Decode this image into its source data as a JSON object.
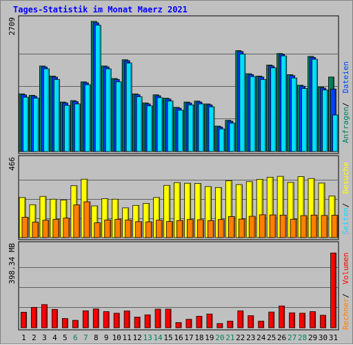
{
  "chart_data": {
    "type": "bar",
    "title": "Tages-Statistik im Monat Maerz 2021",
    "categories": [
      "1",
      "2",
      "3",
      "4",
      "5",
      "6",
      "7",
      "8",
      "9",
      "10",
      "11",
      "12",
      "13",
      "14",
      "15",
      "16",
      "17",
      "18",
      "19",
      "20",
      "21",
      "22",
      "23",
      "24",
      "25",
      "26",
      "27",
      "28",
      "29",
      "30",
      "31"
    ],
    "weekend_days": [
      "6",
      "7",
      "13",
      "14",
      "20",
      "21",
      "27",
      "28"
    ],
    "colors": {
      "background": "#c0c0c0",
      "title": "#0000ff",
      "anfragen": "#00805c",
      "dateien": "#0040ff",
      "seiten": "#00e0ff",
      "besuche": "#ffff00",
      "rechner": "#ff8000",
      "volumen": "#ff0000",
      "weekend": "#00805c",
      "weekday": "#000000",
      "gridline": "#000000"
    },
    "panels": [
      {
        "id": "requests",
        "ymax_label": "2709",
        "ymax": 2709,
        "grid": true,
        "series": [
          {
            "name": "Anfragen",
            "color": "#00805c",
            "values": [
              1200,
              1170,
              1780,
              1570,
              1030,
              1060,
              1450,
              2709,
              1780,
              1520,
              1910,
              1200,
              1010,
              1180,
              1110,
              920,
              1030,
              1050,
              990,
              530,
              650,
              2100,
              1620,
              1570,
              1800,
              2040,
              1600,
              1380,
              1980,
              1340,
              1550
            ]
          },
          {
            "name": "Dateien",
            "color": "#0040ff",
            "values": [
              1180,
              1150,
              1760,
              1550,
              1010,
              1040,
              1430,
              2680,
              1760,
              1500,
              1890,
              1180,
              990,
              1160,
              1090,
              900,
              1010,
              1030,
              970,
              510,
              630,
              2080,
              1600,
              1550,
              1780,
              2020,
              1580,
              1360,
              1960,
              1320,
              1300
            ]
          },
          {
            "name": "Seiten",
            "color": "#00e0ff",
            "values": [
              1130,
              1110,
              1720,
              1500,
              960,
              990,
              1390,
              2630,
              1720,
              1450,
              1840,
              1140,
              950,
              1120,
              1050,
              860,
              970,
              990,
              930,
              470,
              590,
              2030,
              1560,
              1500,
              1740,
              1990,
              1530,
              1310,
              1920,
              1280,
              760
            ]
          }
        ]
      },
      {
        "id": "visits",
        "ymax_label": "466",
        "ymax": 466,
        "grid": true,
        "series": [
          {
            "name": "Besuche",
            "color": "#ffff00",
            "values": [
              244,
              200,
              251,
              234,
              229,
              316,
              356,
              193,
              237,
              234,
              181,
              196,
              208,
              244,
              318,
              335,
              331,
              330,
              311,
              305,
              346,
              323,
              341,
              355,
              368,
              373,
              336,
              372,
              360,
              332,
              253
            ]
          },
          {
            "name": "Rechner",
            "color": "#ff8000",
            "values": [
              124,
              94,
              106,
              111,
              119,
              199,
              218,
              90,
              107,
              111,
              107,
              97,
              96,
              106,
              98,
              104,
              110,
              109,
              103,
              110,
              128,
              113,
              130,
              139,
              138,
              137,
              112,
              134,
              137,
              135,
              136
            ]
          }
        ]
      },
      {
        "id": "volume",
        "ymax_label": "398.34 MB",
        "ymax": 398.34,
        "unit": "MB",
        "grid": true,
        "series": [
          {
            "name": "Volumen",
            "color": "#ff0000",
            "values": [
              77,
              101,
              115,
              91,
              46,
              37,
              84,
              93,
              80,
              72,
              83,
              53,
              64,
              92,
              92,
              26,
              42,
              57,
              68,
              21,
              33,
              84,
              60,
              33,
              78,
              108,
              74,
              72,
              80,
              62,
              370
            ]
          }
        ]
      }
    ],
    "legend": {
      "placement": "right-vertical",
      "items": [
        {
          "text": "Anfragen",
          "color": "#00805c",
          "panel": "requests"
        },
        {
          "text": "Dateien",
          "color": "#0040ff",
          "panel": "requests"
        },
        {
          "text": "Seiten",
          "color": "#00e0ff",
          "panel": "visits"
        },
        {
          "text": "Besuche",
          "color": "#ffff00",
          "panel": "visits"
        },
        {
          "text": "Rechner",
          "color": "#ff8000",
          "panel": "volume"
        },
        {
          "text": "Volumen",
          "color": "#ff0000",
          "panel": "volume"
        }
      ],
      "separator": " / "
    }
  }
}
